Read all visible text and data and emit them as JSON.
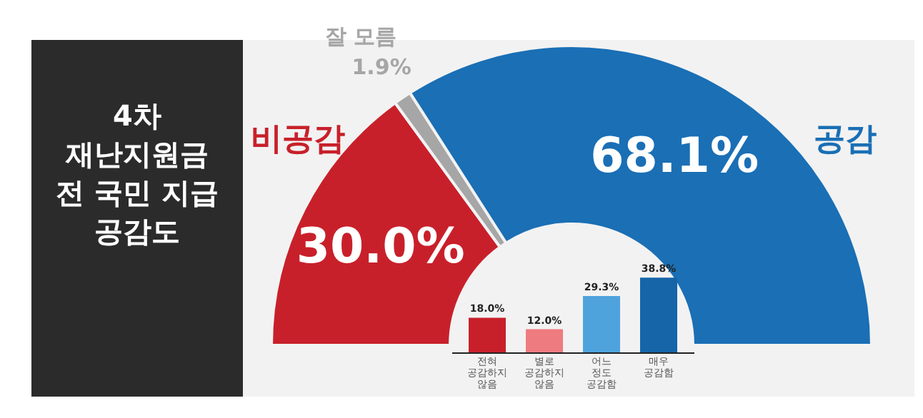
{
  "chart_data": [
    {
      "type": "donut",
      "title": "4차\n재난지원금\n전 국민 지급\n공감도",
      "categories": [
        "비공감",
        "잘 모름",
        "공감"
      ],
      "values": [
        30.0,
        1.9,
        68.1
      ],
      "colors": [
        "#c8202a",
        "#a6a6a6",
        "#1a6fb5"
      ],
      "value_labels": [
        "30.0%",
        "1.9%",
        "68.1%"
      ]
    },
    {
      "type": "bar",
      "categories": [
        "전혀 공감하지 않음",
        "별로 공감하지 않음",
        "어느 정도 공감함",
        "매우 공감함"
      ],
      "values": [
        18.0,
        12.0,
        29.3,
        38.8
      ],
      "colors": [
        "#c8202a",
        "#ee7b80",
        "#4ea3dc",
        "#1565a8"
      ],
      "value_labels": [
        "18.0%",
        "12.0%",
        "29.3%",
        "38.8%"
      ]
    }
  ]
}
